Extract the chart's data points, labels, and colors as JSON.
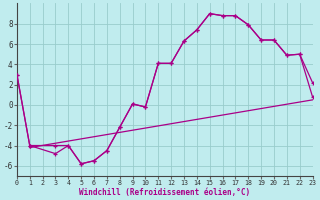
{
  "xlabel": "Windchill (Refroidissement éolien,°C)",
  "background_color": "#c0ecee",
  "grid_color": "#99cccc",
  "line_color": "#aa0088",
  "xlim": [
    0,
    23
  ],
  "ylim": [
    -7,
    10
  ],
  "xticks": [
    0,
    1,
    2,
    3,
    4,
    5,
    6,
    7,
    8,
    9,
    10,
    11,
    12,
    13,
    14,
    15,
    16,
    17,
    18,
    19,
    20,
    21,
    22,
    23
  ],
  "yticks": [
    -6,
    -4,
    -2,
    0,
    2,
    4,
    6,
    8
  ],
  "line1_x": [
    0,
    1,
    3,
    4,
    5,
    6,
    7,
    8,
    9,
    10,
    11,
    12,
    13,
    14,
    15,
    16,
    17,
    18,
    19,
    20,
    21,
    22,
    23
  ],
  "line1_y": [
    3,
    -4,
    -4,
    -4,
    -5.8,
    -5.5,
    -4.5,
    -2.2,
    0.1,
    -0.2,
    4.1,
    4.1,
    6.3,
    7.4,
    9.0,
    8.8,
    8.8,
    7.9,
    6.4,
    6.4,
    4.9,
    5.0,
    0.8
  ],
  "line2_x": [
    0,
    1,
    3,
    4,
    5,
    6,
    7,
    8,
    9,
    10,
    11,
    12,
    13,
    14,
    15,
    16,
    17,
    18,
    19,
    20,
    21,
    22,
    23
  ],
  "line2_y": [
    3,
    -4,
    -4.8,
    -4,
    -5.8,
    -5.5,
    -4.5,
    -2.2,
    0.1,
    -0.2,
    4.1,
    4.1,
    6.3,
    7.4,
    9.0,
    8.8,
    8.8,
    7.9,
    6.4,
    6.4,
    4.9,
    5.0,
    2.2
  ],
  "line3_x": [
    1,
    23
  ],
  "line3_y": [
    -4.2,
    0.5
  ]
}
